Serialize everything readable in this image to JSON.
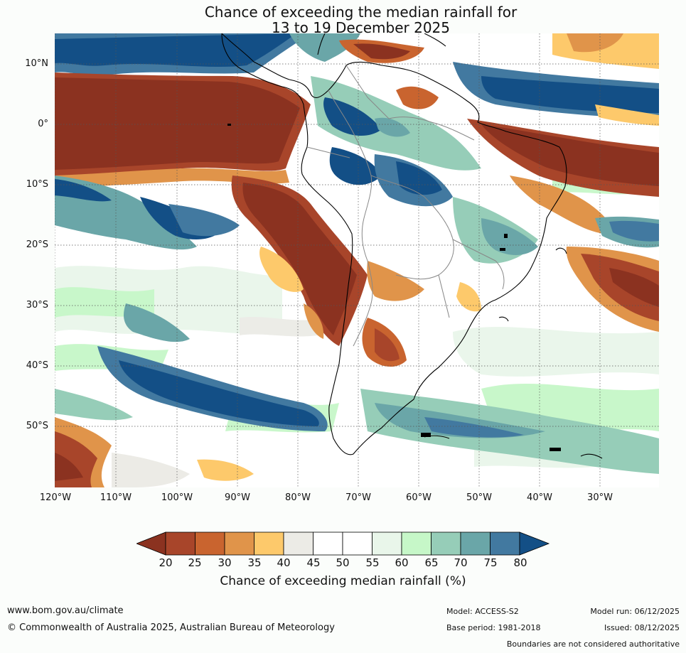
{
  "title": {
    "line1": "Chance of exceeding the median rainfall for",
    "line2": "13 to 19 December 2025"
  },
  "map": {
    "lat_labels": [
      "10°N",
      "0°",
      "10°S",
      "20°S",
      "30°S",
      "40°S",
      "50°S"
    ],
    "lon_labels": [
      "120°W",
      "110°W",
      "100°W",
      "90°W",
      "80°W",
      "70°W",
      "60°W",
      "50°W",
      "40°W",
      "30°W"
    ]
  },
  "legend": {
    "ticks": [
      "20",
      "25",
      "30",
      "35",
      "40",
      "45",
      "50",
      "55",
      "60",
      "65",
      "70",
      "75",
      "80"
    ],
    "colors": [
      "#8b3220",
      "#a8452a",
      "#c9642f",
      "#e0944a",
      "#fdc96b",
      "#ecebe6",
      "#ffffff",
      "#ffffff",
      "#e9f6ea",
      "#c6f7c8",
      "#96cdb8",
      "#6aa6a8",
      "#4279a0",
      "#134f86"
    ],
    "label": "Chance of exceeding median rainfall (%)"
  },
  "footer": {
    "website": "www.bom.gov.au/climate",
    "copyright": "© Commonwealth of Australia 2025, Australian Bureau of Meteorology",
    "model": "Model: ACCESS-S2",
    "model_run": "Model run: 06/12/2025",
    "base_period": "Base period: 1981-2018",
    "issued": "Issued: 08/12/2025",
    "boundaries_note": "Boundaries are not considered authoritative"
  }
}
